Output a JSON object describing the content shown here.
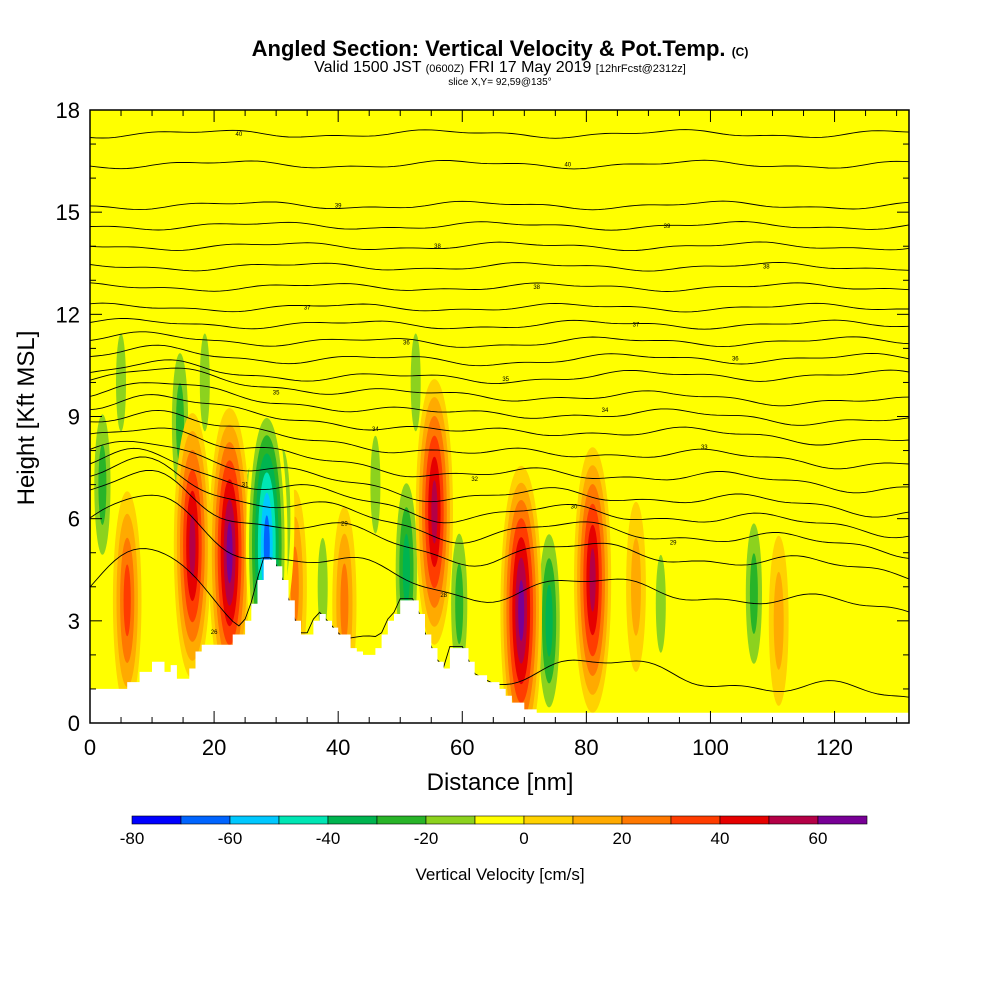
{
  "header": {
    "title_main": "Angled Section: Vertical Velocity & Pot.Temp.",
    "title_mark": "(C)",
    "subtitle_a": "Valid 1500 JST",
    "subtitle_b": "(0600Z)",
    "subtitle_c": "FRI 17 May 2019",
    "subtitle_d": "[12hrFcst@2312z]",
    "slice_label": "slice X,Y= 92,59@135°"
  },
  "chart_data": {
    "type": "heatmap",
    "title": "Angled Section: Vertical Velocity & Pot.Temp.",
    "xlabel": "Distance [nm]",
    "ylabel": "Height [Kft MSL]",
    "xlim": [
      0,
      132
    ],
    "ylim": [
      0,
      18
    ],
    "x_ticks": [
      "0",
      "20",
      "40",
      "60",
      "80",
      "100",
      "120"
    ],
    "y_ticks": [
      "0",
      "3",
      "6",
      "9",
      "12",
      "15",
      "18"
    ],
    "grid": false,
    "colorbar": {
      "title": "Vertical Velocity [cm/s]",
      "placement": "bottom",
      "tick_labels": [
        "-80",
        "-60",
        "-40",
        "-20",
        "0",
        "20",
        "40",
        "60"
      ],
      "levels": [
        -80,
        -70,
        -60,
        -50,
        -40,
        -30,
        -20,
        -10,
        0,
        10,
        20,
        30,
        40,
        50,
        60,
        70
      ],
      "colors": [
        "#0000ff",
        "#0064ff",
        "#00c8ff",
        "#00e6b4",
        "#00b450",
        "#28b428",
        "#8cd21e",
        "#ffff00",
        "#ffd200",
        "#ffaa00",
        "#ff7800",
        "#ff3c00",
        "#e60000",
        "#b40046",
        "#780096"
      ]
    },
    "background_color": "#ffff00",
    "updrafts": [
      {
        "x": 6,
        "height": 3.6,
        "peak": 40
      },
      {
        "x": 16.5,
        "height": 5.2,
        "peak": 60
      },
      {
        "x": 22.5,
        "height": 5.0,
        "peak": 65
      },
      {
        "x": 33,
        "height": 4.0,
        "peak": 25
      },
      {
        "x": 41,
        "height": 3.5,
        "peak": 30
      },
      {
        "x": 55.5,
        "height": 6.2,
        "peak": 60
      },
      {
        "x": 69.5,
        "height": 3.3,
        "peak": 70
      },
      {
        "x": 81,
        "height": 4.2,
        "peak": 60
      },
      {
        "x": 88,
        "height": 4.0,
        "peak": 20
      },
      {
        "x": 111,
        "height": 3.0,
        "peak": 20
      }
    ],
    "downdrafts": [
      {
        "x": 2,
        "height": 7.0,
        "peak": -25
      },
      {
        "x": 5,
        "height": 10.0,
        "peak": -15
      },
      {
        "x": 14.5,
        "height": 8.8,
        "peak": -30
      },
      {
        "x": 18.5,
        "height": 10.0,
        "peak": -15
      },
      {
        "x": 26,
        "height": 5.5,
        "peak": -30
      },
      {
        "x": 28.5,
        "height": 5.2,
        "peak": -65
      },
      {
        "x": 31,
        "height": 6.0,
        "peak": -25
      },
      {
        "x": 37.5,
        "height": 4.0,
        "peak": -20
      },
      {
        "x": 46,
        "height": 7.0,
        "peak": -15
      },
      {
        "x": 51,
        "height": 4.5,
        "peak": -40
      },
      {
        "x": 52.5,
        "height": 10.0,
        "peak": -15
      },
      {
        "x": 59.5,
        "height": 3.5,
        "peak": -30
      },
      {
        "x": 74,
        "height": 3.0,
        "peak": -35
      },
      {
        "x": 92,
        "height": 3.5,
        "peak": -15
      },
      {
        "x": 107,
        "height": 3.8,
        "peak": -30
      }
    ],
    "terrain": [
      [
        0,
        1.0
      ],
      [
        5,
        1.0
      ],
      [
        6,
        1.2
      ],
      [
        8,
        1.5
      ],
      [
        10,
        1.8
      ],
      [
        12,
        1.5
      ],
      [
        13,
        1.7
      ],
      [
        14,
        1.3
      ],
      [
        16,
        1.6
      ],
      [
        17,
        2.1
      ],
      [
        18,
        2.3
      ],
      [
        22,
        2.3
      ],
      [
        23,
        2.6
      ],
      [
        25,
        3.0
      ],
      [
        26,
        3.5
      ],
      [
        27,
        4.2
      ],
      [
        28,
        4.8
      ],
      [
        29,
        4.8
      ],
      [
        30,
        4.6
      ],
      [
        31,
        4.2
      ],
      [
        32,
        3.6
      ],
      [
        33,
        3.0
      ],
      [
        34,
        2.6
      ],
      [
        35,
        2.6
      ],
      [
        36,
        3.0
      ],
      [
        37,
        3.2
      ],
      [
        38,
        3.0
      ],
      [
        39,
        2.8
      ],
      [
        40,
        2.6
      ],
      [
        42,
        2.2
      ],
      [
        43,
        2.1
      ],
      [
        44,
        2.0
      ],
      [
        46,
        2.2
      ],
      [
        47,
        2.6
      ],
      [
        48,
        3.0
      ],
      [
        49,
        3.2
      ],
      [
        50,
        3.6
      ],
      [
        52,
        3.6
      ],
      [
        53,
        3.2
      ],
      [
        54,
        2.6
      ],
      [
        55,
        2.2
      ],
      [
        56,
        1.8
      ],
      [
        57,
        1.6
      ],
      [
        58,
        2.2
      ],
      [
        60,
        2.2
      ],
      [
        61,
        1.8
      ],
      [
        62,
        1.4
      ],
      [
        64,
        1.2
      ],
      [
        66,
        1.0
      ],
      [
        67,
        0.8
      ],
      [
        68,
        0.6
      ],
      [
        70,
        0.4
      ],
      [
        71,
        0.4
      ],
      [
        72,
        0.3
      ],
      [
        132,
        0.3
      ]
    ],
    "isentropes": [
      {
        "base": 2.0,
        "label": "26"
      },
      {
        "base": 4.3,
        "label": "28"
      },
      {
        "base": 5.3,
        "label": "29"
      },
      {
        "base": 5.9,
        "label": "29"
      },
      {
        "base": 6.4,
        "label": "30"
      },
      {
        "base": 6.9,
        "label": "31"
      },
      {
        "base": 7.5,
        "label": "32"
      },
      {
        "base": 8.1,
        "label": "33"
      },
      {
        "base": 8.7,
        "label": "34"
      },
      {
        "base": 9.2,
        "label": "34"
      },
      {
        "base": 9.7,
        "label": "35"
      },
      {
        "base": 10.2,
        "label": "35"
      },
      {
        "base": 10.7,
        "label": "36"
      },
      {
        "base": 11.2,
        "label": "36"
      },
      {
        "base": 11.7,
        "label": "37"
      },
      {
        "base": 12.2,
        "label": "37"
      },
      {
        "base": 12.8,
        "label": "38"
      },
      {
        "base": 13.4,
        "label": "38"
      },
      {
        "base": 14.0,
        "label": "38"
      },
      {
        "base": 14.6,
        "label": "39"
      },
      {
        "base": 15.2,
        "label": "39"
      },
      {
        "base": 16.4,
        "label": "40"
      },
      {
        "base": 17.3,
        "label": "40"
      }
    ]
  }
}
